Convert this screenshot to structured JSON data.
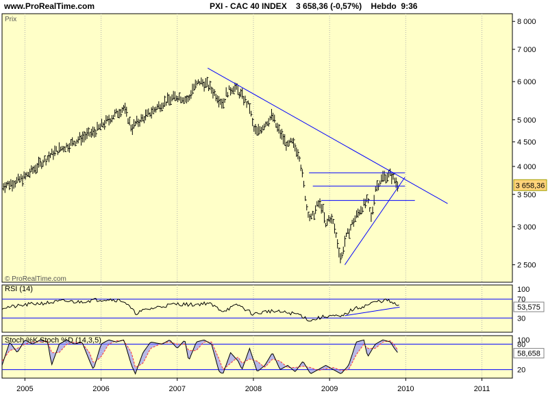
{
  "header": {
    "site": "www.ProRealTime.com",
    "title": "PXI - CAC 40 INDEX    3 658,36 (-0,57%)    Hebdo  9:36"
  },
  "colors": {
    "panel_bg": "#ffffc8",
    "line_blue": "#0000ff",
    "price_bars": "#000000",
    "stoch_k_fill": "#8080ff",
    "stoch_d": "#ff3030"
  },
  "chart_data": [
    {
      "type": "line",
      "panel": "price",
      "label": "Prix",
      "watermark": "© ProRealTime.com",
      "scale": "log",
      "ylim": [
        2300,
        8300
      ],
      "yticks": [
        2500,
        3000,
        3500,
        4000,
        4500,
        5000,
        6000,
        7000,
        8000
      ],
      "ytick_labels": [
        "2 500",
        "3 000",
        "3 500",
        "4 000",
        "4 500",
        "5 000",
        "6 000",
        "7 000",
        "8 000"
      ],
      "last_value_label": "3 658,36",
      "series": [
        {
          "x": [
            2004.7,
            2004.85,
            2005.0,
            2005.2,
            2005.4,
            2005.6,
            2005.75,
            2005.9,
            2006.1,
            2006.3,
            2006.4,
            2006.45,
            2006.6,
            2006.8,
            2007.0,
            2007.15,
            2007.2,
            2007.3,
            2007.4,
            2007.5,
            2007.6,
            2007.65,
            2007.75,
            2007.85,
            2007.95,
            2008.0,
            2008.05,
            2008.15,
            2008.25,
            2008.3,
            2008.45,
            2008.5,
            2008.6,
            2008.65,
            2008.7,
            2008.75,
            2008.8,
            2008.85,
            2008.9,
            2008.95,
            2009.0,
            2009.05,
            2009.1,
            2009.15,
            2009.2,
            2009.3,
            2009.4,
            2009.5,
            2009.55,
            2009.6,
            2009.7,
            2009.8,
            2009.85,
            2009.9
          ],
          "values": [
            3650,
            3700,
            3800,
            4050,
            4300,
            4450,
            4600,
            4700,
            5000,
            5300,
            4800,
            4900,
            5100,
            5400,
            5600,
            5500,
            5800,
            6000,
            5900,
            5650,
            5400,
            5700,
            5850,
            5600,
            5300,
            4800,
            4700,
            4900,
            5100,
            4850,
            4400,
            4500,
            4250,
            3750,
            3300,
            3100,
            3200,
            3350,
            3300,
            3000,
            3150,
            3050,
            2800,
            2550,
            2800,
            3050,
            3250,
            3400,
            3100,
            3600,
            3800,
            3850,
            3750,
            3658
          ]
        }
      ],
      "trendlines": [
        {
          "x": [
            2007.4,
            2010.55
          ],
          "values": [
            6400,
            3350
          ]
        },
        {
          "x": [
            2009.2,
            2009.99
          ],
          "values": [
            2500,
            3800
          ]
        }
      ],
      "hlines": [
        {
          "value": 3880,
          "x": [
            2008.73,
            2009.99
          ]
        },
        {
          "value": 3640,
          "x": [
            2008.78,
            2009.99
          ]
        },
        {
          "value": 3400,
          "x": [
            2008.89,
            2010.12
          ]
        }
      ]
    },
    {
      "type": "line",
      "panel": "rsi",
      "label": "RSI (14)",
      "ylim": [
        0,
        100
      ],
      "levels": [
        70,
        30
      ],
      "level_labels": [
        "70",
        "30"
      ],
      "top_label": "100",
      "last_value_label": "53,575",
      "series": [
        {
          "x": [
            2004.7,
            2004.9,
            2005.1,
            2005.3,
            2005.5,
            2005.7,
            2005.9,
            2006.1,
            2006.3,
            2006.45,
            2006.6,
            2006.8,
            2007.0,
            2007.2,
            2007.4,
            2007.6,
            2007.8,
            2008.0,
            2008.2,
            2008.4,
            2008.6,
            2008.75,
            2008.85,
            2009.0,
            2009.15,
            2009.3,
            2009.45,
            2009.6,
            2009.75,
            2009.85,
            2009.92
          ],
          "values": [
            52,
            55,
            60,
            62,
            66,
            64,
            68,
            70,
            66,
            40,
            48,
            55,
            60,
            58,
            62,
            45,
            58,
            38,
            45,
            42,
            38,
            24,
            30,
            35,
            32,
            48,
            55,
            64,
            68,
            60,
            53.575
          ]
        }
      ],
      "trendlines": [
        {
          "x": [
            2009.2,
            2009.92
          ],
          "values": [
            35,
            53
          ]
        }
      ]
    },
    {
      "type": "line",
      "panel": "stoch",
      "label": "Stoch %K",
      "label2": "Stoch %D (14,3,5)",
      "ylim": [
        0,
        100
      ],
      "levels": [
        80,
        20
      ],
      "level_labels": [
        "80",
        "20"
      ],
      "top_label": "100",
      "last_value_label": "58,658",
      "series": [
        {
          "name": "Stoch %K",
          "x": [
            2004.7,
            2004.8,
            2004.9,
            2005.0,
            2005.1,
            2005.2,
            2005.3,
            2005.35,
            2005.45,
            2005.55,
            2005.65,
            2005.75,
            2005.85,
            2005.9,
            2006.0,
            2006.1,
            2006.2,
            2006.3,
            2006.4,
            2006.45,
            2006.55,
            2006.65,
            2006.8,
            2006.9,
            2007.0,
            2007.1,
            2007.15,
            2007.25,
            2007.35,
            2007.45,
            2007.55,
            2007.6,
            2007.7,
            2007.8,
            2007.85,
            2007.95,
            2008.05,
            2008.15,
            2008.25,
            2008.35,
            2008.45,
            2008.55,
            2008.65,
            2008.75,
            2008.85,
            2008.95,
            2009.05,
            2009.15,
            2009.25,
            2009.35,
            2009.45,
            2009.5,
            2009.6,
            2009.7,
            2009.8,
            2009.85,
            2009.9
          ],
          "values": [
            30,
            85,
            60,
            90,
            80,
            90,
            85,
            30,
            80,
            90,
            80,
            85,
            40,
            20,
            80,
            90,
            85,
            90,
            30,
            10,
            60,
            85,
            80,
            90,
            70,
            90,
            40,
            85,
            90,
            80,
            15,
            10,
            60,
            40,
            20,
            70,
            15,
            30,
            60,
            20,
            30,
            15,
            40,
            10,
            20,
            30,
            20,
            10,
            30,
            85,
            90,
            50,
            80,
            90,
            85,
            70,
            58.658
          ]
        },
        {
          "name": "Stoch %D (14,3,5)",
          "x": [
            2004.7,
            2004.8,
            2004.9,
            2005.0,
            2005.1,
            2005.2,
            2005.3,
            2005.35,
            2005.45,
            2005.55,
            2005.65,
            2005.75,
            2005.85,
            2005.9,
            2006.0,
            2006.1,
            2006.2,
            2006.3,
            2006.4,
            2006.45,
            2006.55,
            2006.65,
            2006.8,
            2006.9,
            2007.0,
            2007.1,
            2007.15,
            2007.25,
            2007.35,
            2007.45,
            2007.55,
            2007.6,
            2007.7,
            2007.8,
            2007.85,
            2007.95,
            2008.05,
            2008.15,
            2008.25,
            2008.35,
            2008.45,
            2008.55,
            2008.65,
            2008.75,
            2008.85,
            2008.95,
            2009.05,
            2009.15,
            2009.25,
            2009.35,
            2009.45,
            2009.5,
            2009.6,
            2009.7,
            2009.8,
            2009.85,
            2009.9
          ],
          "values": [
            40,
            65,
            70,
            80,
            85,
            85,
            87,
            60,
            60,
            80,
            85,
            82,
            60,
            35,
            50,
            80,
            88,
            88,
            60,
            25,
            35,
            70,
            82,
            85,
            80,
            80,
            65,
            65,
            85,
            85,
            45,
            20,
            35,
            50,
            35,
            45,
            40,
            25,
            45,
            40,
            25,
            25,
            28,
            25,
            18,
            22,
            25,
            18,
            20,
            55,
            80,
            70,
            70,
            85,
            88,
            78,
            65
          ]
        }
      ]
    }
  ],
  "x_axis": {
    "ticks": [
      2005,
      2006,
      2007,
      2008,
      2009,
      2010,
      2011
    ],
    "tick_labels": [
      "2005",
      "2006",
      "2007",
      "2008",
      "2009",
      "2010",
      "2011"
    ]
  }
}
